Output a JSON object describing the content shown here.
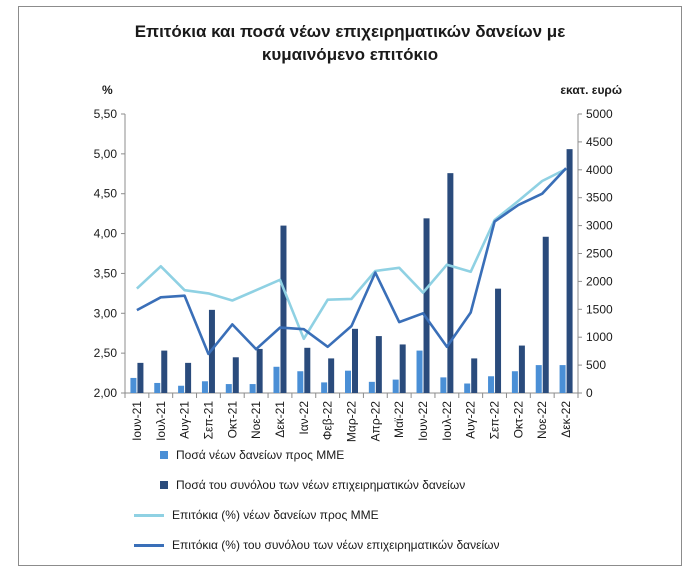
{
  "colors": {
    "bar_sme": "#4a8fd6",
    "bar_total": "#2a4b7c",
    "line_sme": "#8fd1e3",
    "line_total": "#3a6fb8",
    "axis": "#8c8c8c"
  },
  "chart_data": {
    "type": "bar",
    "title_lines": [
      "Επιτόκια και ποσά νέων επιχειρηματικών δανείων με",
      "κυμαινόμενο επιτόκιο"
    ],
    "left_axis_unit": "%",
    "right_axis_unit": "εκατ. ευρώ",
    "left_ticks": [
      "2,00",
      "2,50",
      "3,00",
      "3,50",
      "4,00",
      "4,50",
      "5,00",
      "5,50"
    ],
    "right_ticks": [
      "0",
      "500",
      "1000",
      "1500",
      "2000",
      "2500",
      "3000",
      "3500",
      "4000",
      "4500",
      "5000"
    ],
    "left_ylim": [
      2.0,
      5.5
    ],
    "right_ylim": [
      0,
      5000
    ],
    "categories": [
      "Ιουν-21",
      "Ιουλ-21",
      "Αυγ-21",
      "Σεπ-21",
      "Οκτ-21",
      "Νοε-21",
      "Δεκ-21",
      "Ιαν-22",
      "Φεβ-22",
      "Μαρ-22",
      "Απρ-22",
      "Μαϊ-22",
      "Ιουν-22",
      "Ιουλ-22",
      "Αυγ-22",
      "Σεπ-22",
      "Οκτ-22",
      "Νοε-22",
      "Δεκ-22"
    ],
    "series": [
      {
        "name": "Ποσά νέων δανείων προς ΜΜΕ",
        "kind": "bar",
        "axis": "right",
        "values": [
          270,
          180,
          130,
          210,
          160,
          160,
          470,
          390,
          190,
          400,
          200,
          240,
          760,
          280,
          170,
          300,
          390,
          500,
          500
        ]
      },
      {
        "name": "Ποσά του συνόλου των νέων επιχειρηματικών δανείων",
        "kind": "bar",
        "axis": "right",
        "values": [
          540,
          760,
          540,
          1490,
          640,
          790,
          3000,
          810,
          620,
          1150,
          1020,
          870,
          3130,
          3940,
          620,
          1870,
          850,
          2800,
          4370
        ]
      },
      {
        "name": "Επιτόκια (%) νέων δανείων προς ΜΜΕ",
        "kind": "line",
        "axis": "left",
        "values": [
          3.31,
          3.59,
          3.29,
          3.25,
          3.16,
          3.29,
          3.42,
          2.68,
          3.17,
          3.18,
          3.53,
          3.57,
          3.26,
          3.61,
          3.52,
          4.17,
          4.41,
          4.66,
          4.81
        ]
      },
      {
        "name": "Επιτόκια (%) του συνόλου των νέων επιχειρηματικών δανείων",
        "kind": "line",
        "axis": "left",
        "values": [
          3.04,
          3.2,
          3.22,
          2.49,
          2.86,
          2.55,
          2.82,
          2.8,
          2.58,
          2.84,
          3.51,
          2.89,
          3.0,
          2.58,
          3.01,
          4.15,
          4.36,
          4.5,
          4.82
        ]
      }
    ],
    "legend": "bottom",
    "grid": false
  }
}
